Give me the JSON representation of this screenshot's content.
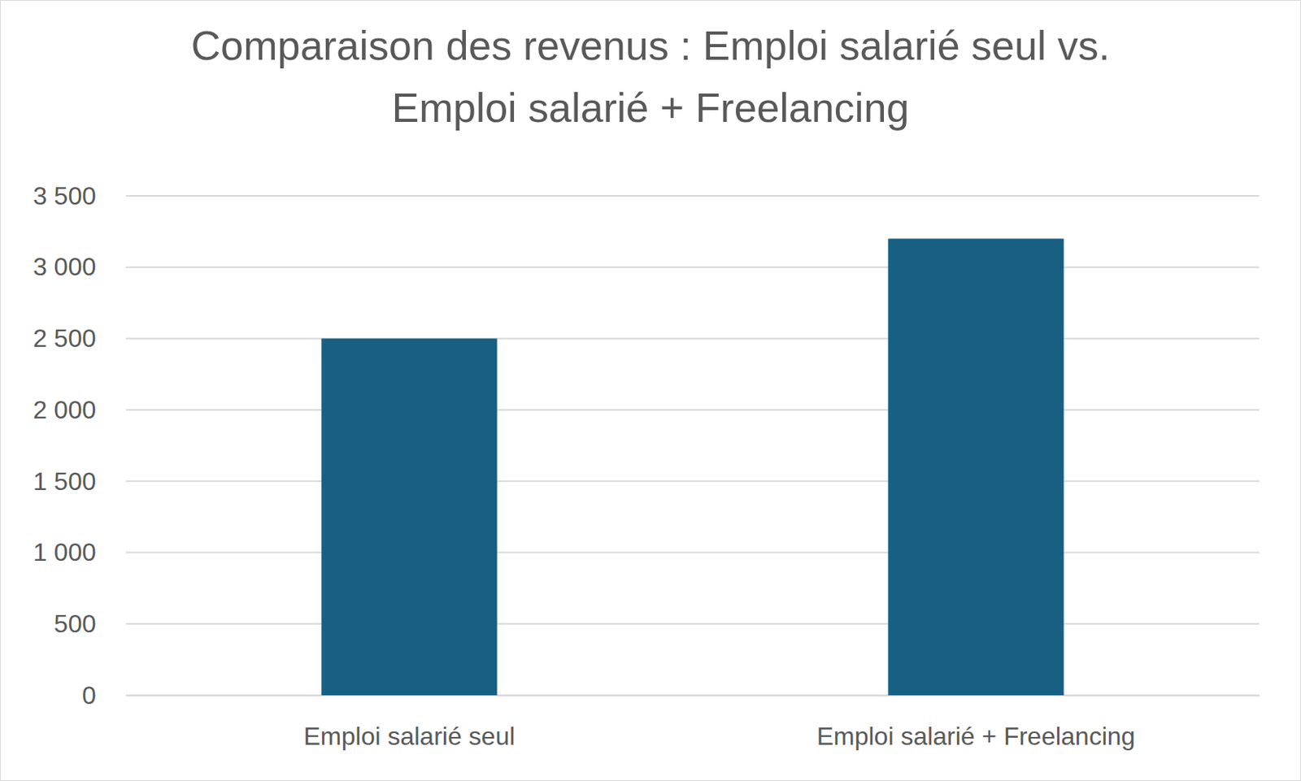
{
  "chart_data": {
    "type": "bar",
    "title": "Comparaison des revenus : Emploi salarié seul vs. Emploi salarié + Freelancing",
    "categories": [
      "Emploi salarié seul",
      "Emploi salarié + Freelancing"
    ],
    "values": [
      2500,
      3200
    ],
    "color": "#175f83",
    "ylim": [
      0,
      3500
    ],
    "yticks": [
      0,
      500,
      {
        "value": 1000,
        "label": "1 000"
      },
      {
        "value": 1500,
        "label": "1 500"
      },
      {
        "value": 2000,
        "label": "2 000"
      },
      {
        "value": 2500,
        "label": "2 500"
      },
      {
        "value": 3000,
        "label": "3 000"
      },
      {
        "value": 3500,
        "label": "3 500"
      }
    ],
    "grid": true
  }
}
